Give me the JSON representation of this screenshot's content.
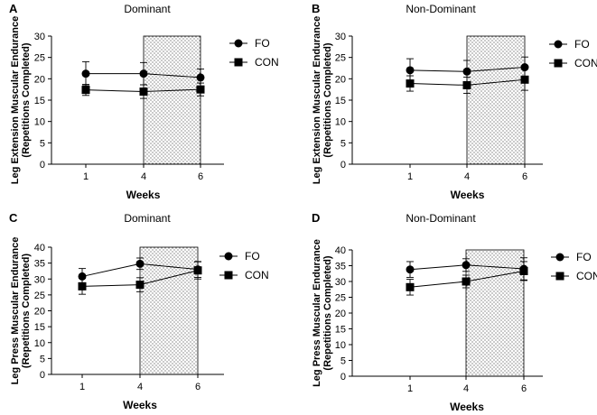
{
  "chart_data": [
    {
      "type": "line",
      "panel_label": "A",
      "title": "Dominant",
      "xlabel": "Weeks",
      "ylabel_line1": "Leg Extension Muscular Endurance",
      "ylabel_line2": "(Repetitions Completed)",
      "categories": [
        "1",
        "4",
        "6"
      ],
      "ylim": [
        0,
        30
      ],
      "yticks": [
        "0",
        "5",
        "10",
        "15",
        "20",
        "25",
        "30"
      ],
      "shaded_weeks": [
        "4",
        "6"
      ],
      "series": [
        {
          "name": "FO",
          "marker": "circle",
          "values": [
            21.2,
            21.2,
            20.3
          ],
          "errors": [
            2.8,
            2.6,
            2.0
          ]
        },
        {
          "name": "CON",
          "marker": "square",
          "values": [
            17.4,
            17.0,
            17.5
          ],
          "errors": [
            1.3,
            1.6,
            1.5
          ]
        }
      ]
    },
    {
      "type": "line",
      "panel_label": "B",
      "title": "Non-Dominant",
      "xlabel": "Weeks",
      "ylabel_line1": "Leg Extension Muscular Endurance",
      "ylabel_line2": "(Repetitions Completed)",
      "categories": [
        "1",
        "4",
        "6"
      ],
      "ylim": [
        0,
        30
      ],
      "yticks": [
        "0",
        "5",
        "10",
        "15",
        "20",
        "25",
        "30"
      ],
      "shaded_weeks": [
        "4",
        "6"
      ],
      "series": [
        {
          "name": "FO",
          "marker": "circle",
          "values": [
            22.0,
            21.7,
            22.7
          ],
          "errors": [
            2.7,
            2.6,
            2.4
          ]
        },
        {
          "name": "CON",
          "marker": "square",
          "values": [
            18.9,
            18.5,
            19.8
          ],
          "errors": [
            1.8,
            1.9,
            2.5
          ]
        }
      ]
    },
    {
      "type": "line",
      "panel_label": "C",
      "title": "Dominant",
      "xlabel": "Weeks",
      "ylabel_line1": "Leg Press Muscular Endurance",
      "ylabel_line2": "(Repetitions Completed)",
      "categories": [
        "1",
        "4",
        "6"
      ],
      "ylim": [
        0,
        40
      ],
      "yticks": [
        "0",
        "5",
        "10",
        "15",
        "20",
        "25",
        "30",
        "35",
        "40"
      ],
      "shaded_weeks": [
        "4",
        "6"
      ],
      "series": [
        {
          "name": "FO",
          "marker": "circle",
          "values": [
            30.8,
            34.8,
            33.0
          ],
          "errors": [
            2.5,
            1.8,
            2.5
          ]
        },
        {
          "name": "CON",
          "marker": "square",
          "values": [
            27.7,
            28.2,
            32.7
          ],
          "errors": [
            2.5,
            2.2,
            2.7
          ]
        }
      ]
    },
    {
      "type": "line",
      "panel_label": "D",
      "title": "Non-Dominant",
      "xlabel": "Weeks",
      "ylabel_line1": "Leg Press Muscular Endurance",
      "ylabel_line2": "(Repetitions Completed)",
      "categories": [
        "1",
        "4",
        "6"
      ],
      "ylim": [
        0,
        40
      ],
      "yticks": [
        "0",
        "5",
        "10",
        "15",
        "20",
        "25",
        "30",
        "35",
        "40"
      ],
      "shaded_weeks": [
        "4",
        "6"
      ],
      "series": [
        {
          "name": "FO",
          "marker": "circle",
          "values": [
            33.8,
            35.2,
            34.0
          ],
          "errors": [
            2.5,
            2.0,
            3.5
          ]
        },
        {
          "name": "CON",
          "marker": "square",
          "values": [
            28.2,
            30.0,
            33.3
          ],
          "errors": [
            2.5,
            2.0,
            3.0
          ]
        }
      ]
    }
  ]
}
